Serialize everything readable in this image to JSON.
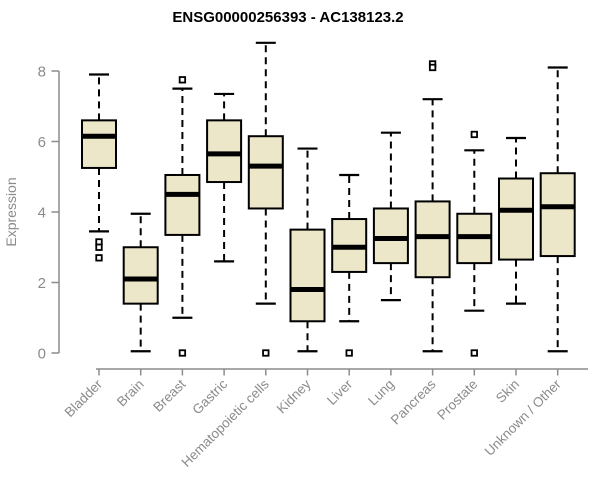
{
  "title": "ENSG00000256393 - AC138123.2",
  "chart_data": {
    "type": "boxplot",
    "title": "ENSG00000256393 - AC138123.2",
    "xlabel": "",
    "ylabel": "Expression",
    "ylim": [
      0,
      8
    ],
    "yticks": [
      0,
      2,
      4,
      6,
      8
    ],
    "grid": false,
    "legend": "none",
    "x_tick_rotation_deg": 45,
    "colors": {
      "box_fill": "#EDE7CA",
      "box_stroke": "#000000",
      "median": "#000000",
      "whisker": "#000000",
      "outlier_stroke": "#000000",
      "axis": "#8C8C8C",
      "tick_label": "#8B8B8B",
      "title": "#000000",
      "background": "#FFFFFF"
    },
    "categories": [
      "Bladder",
      "Brain",
      "Breast",
      "Gastric",
      "Hematopoietic cells",
      "Kidney",
      "Liver",
      "Lung",
      "Pancreas",
      "Prostate",
      "Skin",
      "Unknown / Other"
    ],
    "series": [
      {
        "name": "Bladder",
        "low": 3.45,
        "q1": 5.25,
        "median": 6.15,
        "q3": 6.6,
        "high": 7.9,
        "outliers": [
          3.15,
          3.0,
          2.7
        ]
      },
      {
        "name": "Brain",
        "low": 0.05,
        "q1": 1.4,
        "median": 2.1,
        "q3": 3.0,
        "high": 3.95,
        "outliers": []
      },
      {
        "name": "Breast",
        "low": 1.0,
        "q1": 3.35,
        "median": 4.5,
        "q3": 5.05,
        "high": 7.5,
        "outliers": [
          7.75,
          0.0
        ]
      },
      {
        "name": "Gastric",
        "low": 2.6,
        "q1": 4.85,
        "median": 5.65,
        "q3": 6.6,
        "high": 7.35,
        "outliers": []
      },
      {
        "name": "Hematopoietic cells",
        "low": 1.4,
        "q1": 4.1,
        "median": 5.3,
        "q3": 6.15,
        "high": 8.8,
        "outliers": [
          0.0
        ]
      },
      {
        "name": "Kidney",
        "low": 0.05,
        "q1": 0.9,
        "median": 1.8,
        "q3": 3.5,
        "high": 5.8,
        "outliers": []
      },
      {
        "name": "Liver",
        "low": 0.9,
        "q1": 2.3,
        "median": 3.0,
        "q3": 3.8,
        "high": 5.05,
        "outliers": [
          0.0
        ]
      },
      {
        "name": "Lung",
        "low": 1.5,
        "q1": 2.55,
        "median": 3.25,
        "q3": 4.1,
        "high": 6.25,
        "outliers": []
      },
      {
        "name": "Pancreas",
        "low": 0.05,
        "q1": 2.15,
        "median": 3.3,
        "q3": 4.3,
        "high": 7.2,
        "outliers": [
          8.2,
          8.1
        ]
      },
      {
        "name": "Prostate",
        "low": 1.2,
        "q1": 2.55,
        "median": 3.3,
        "q3": 3.95,
        "high": 5.75,
        "outliers": [
          6.2,
          0.0
        ]
      },
      {
        "name": "Skin",
        "low": 1.4,
        "q1": 2.65,
        "median": 4.05,
        "q3": 4.95,
        "high": 6.1,
        "outliers": []
      },
      {
        "name": "Unknown / Other",
        "low": 0.05,
        "q1": 2.75,
        "median": 4.15,
        "q3": 5.1,
        "high": 8.1,
        "outliers": []
      }
    ]
  }
}
